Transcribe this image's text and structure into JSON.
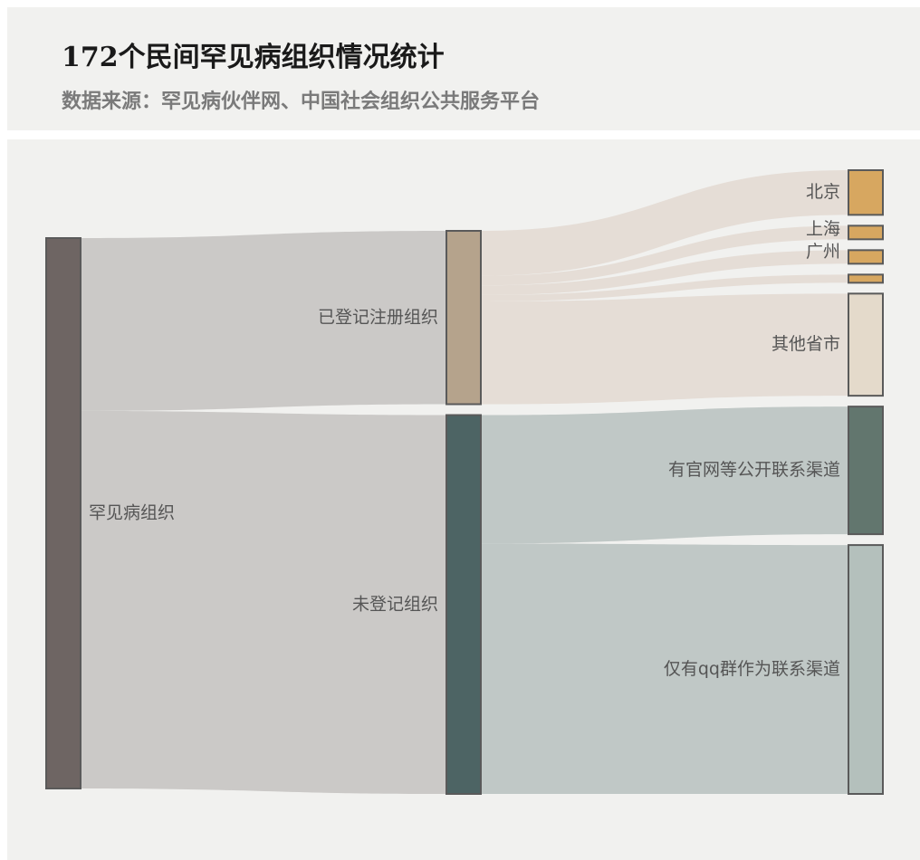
{
  "header": {
    "title": "172个民间罕见病组织情况统计",
    "subtitle": "数据来源：罕见病伙伴网、中国社会组织公共服务平台"
  },
  "chart_data": {
    "type": "sankey",
    "nodes": [
      {
        "id": "root",
        "label": "罕见病组织",
        "color": "#6e6563"
      },
      {
        "id": "registered",
        "label": "已登记注册组织",
        "color": "#b5a38c"
      },
      {
        "id": "unregistered",
        "label": "未登记组织",
        "color": "#4d6464"
      },
      {
        "id": "beijing",
        "label": "北京",
        "color": "#d7a760"
      },
      {
        "id": "shanghai",
        "label": "上海",
        "color": "#d7a760"
      },
      {
        "id": "guangzhou",
        "label": "广州",
        "color": "#d7a760"
      },
      {
        "id": "unlabeled_city",
        "label": "",
        "color": "#d7a760"
      },
      {
        "id": "other",
        "label": "其他省市",
        "color": "#e4dacb"
      },
      {
        "id": "website",
        "label": "有官网等公开联系渠道",
        "color": "#62766e"
      },
      {
        "id": "qq",
        "label": "仅有qq群作为联系渠道",
        "color": "#b4c0bc"
      }
    ],
    "links": [
      {
        "source": "root",
        "target": "registered",
        "value": 54,
        "color": "#cbc9c7"
      },
      {
        "source": "root",
        "target": "unregistered",
        "value": 118,
        "color": "#cbc9c7"
      },
      {
        "source": "registered",
        "target": "beijing",
        "value": 14,
        "color": "#e5ddd6"
      },
      {
        "source": "registered",
        "target": "shanghai",
        "value": 3,
        "color": "#e5ddd6"
      },
      {
        "source": "registered",
        "target": "guangzhou",
        "value": 3,
        "color": "#e5ddd6"
      },
      {
        "source": "registered",
        "target": "unlabeled_city",
        "value": 2,
        "color": "#e5ddd6"
      },
      {
        "source": "registered",
        "target": "other",
        "value": 32,
        "color": "#e5ddd6"
      },
      {
        "source": "unregistered",
        "target": "website",
        "value": 40,
        "color": "#c0c8c6"
      },
      {
        "source": "unregistered",
        "target": "qq",
        "value": 78,
        "color": "#c0c8c6"
      }
    ]
  }
}
